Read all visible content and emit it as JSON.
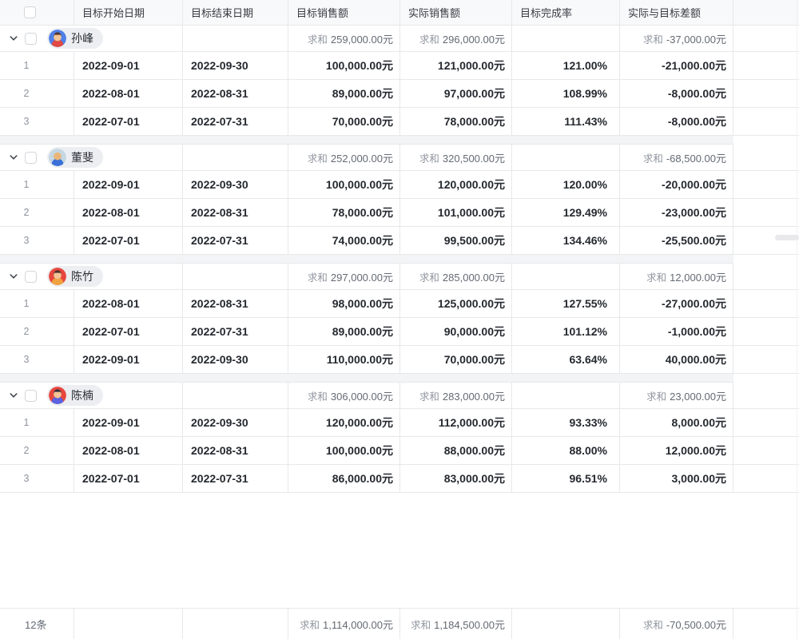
{
  "table": {
    "sum_label": "求和",
    "columns": [
      {
        "key": "start",
        "label": "目标开始日期"
      },
      {
        "key": "end",
        "label": "目标结束日期"
      },
      {
        "key": "target",
        "label": "目标销售额"
      },
      {
        "key": "actual",
        "label": "实际销售额"
      },
      {
        "key": "rate",
        "label": "目标完成率"
      },
      {
        "key": "diff",
        "label": "实际与目标差额"
      }
    ],
    "groups": [
      {
        "name": "孙峰",
        "avatar": {
          "bg": "#4e7fe8",
          "shirt": "#e04a42",
          "skin": "#f4c496",
          "hair": "#57332a"
        },
        "sums": {
          "target": "259,000.00元",
          "actual": "296,000.00元",
          "diff": "-37,000.00元"
        },
        "rows": [
          {
            "num": "1",
            "start": "2022-09-01",
            "end": "2022-09-30",
            "target": "100,000.00元",
            "actual": "121,000.00元",
            "rate": "121.00%",
            "diff": "-21,000.00元"
          },
          {
            "num": "2",
            "start": "2022-08-01",
            "end": "2022-08-31",
            "target": "89,000.00元",
            "actual": "97,000.00元",
            "rate": "108.99%",
            "diff": "-8,000.00元"
          },
          {
            "num": "3",
            "start": "2022-07-01",
            "end": "2022-07-31",
            "target": "70,000.00元",
            "actual": "78,000.00元",
            "rate": "111.43%",
            "diff": "-8,000.00元"
          }
        ]
      },
      {
        "name": "董斐",
        "avatar": {
          "bg": "#c5d7e2",
          "shirt": "#3a6fd8",
          "skin": "#e9b678",
          "hair": null
        },
        "sums": {
          "target": "252,000.00元",
          "actual": "320,500.00元",
          "diff": "-68,500.00元"
        },
        "rows": [
          {
            "num": "1",
            "start": "2022-09-01",
            "end": "2022-09-30",
            "target": "100,000.00元",
            "actual": "120,000.00元",
            "rate": "120.00%",
            "diff": "-20,000.00元"
          },
          {
            "num": "2",
            "start": "2022-08-01",
            "end": "2022-08-31",
            "target": "78,000.00元",
            "actual": "101,000.00元",
            "rate": "129.49%",
            "diff": "-23,000.00元"
          },
          {
            "num": "3",
            "start": "2022-07-01",
            "end": "2022-07-31",
            "target": "74,000.00元",
            "actual": "99,500.00元",
            "rate": "134.46%",
            "diff": "-25,500.00元"
          }
        ]
      },
      {
        "name": "陈竹",
        "avatar": {
          "bg": "#e8473e",
          "shirt": "#f0a23f",
          "skin": "#f4c496",
          "hair": "#4b332a"
        },
        "sums": {
          "target": "297,000.00元",
          "actual": "285,000.00元",
          "diff": "12,000.00元"
        },
        "rows": [
          {
            "num": "1",
            "start": "2022-08-01",
            "end": "2022-08-31",
            "target": "98,000.00元",
            "actual": "125,000.00元",
            "rate": "127.55%",
            "diff": "-27,000.00元"
          },
          {
            "num": "2",
            "start": "2022-07-01",
            "end": "2022-07-31",
            "target": "89,000.00元",
            "actual": "90,000.00元",
            "rate": "101.12%",
            "diff": "-1,000.00元"
          },
          {
            "num": "3",
            "start": "2022-09-01",
            "end": "2022-09-30",
            "target": "110,000.00元",
            "actual": "70,000.00元",
            "rate": "63.64%",
            "diff": "40,000.00元"
          }
        ]
      },
      {
        "name": "陈楠",
        "avatar": {
          "bg": "#e8473e",
          "shirt": "#5c62e0",
          "skin": "#f4c496",
          "hair": "#33303c"
        },
        "sums": {
          "target": "306,000.00元",
          "actual": "283,000.00元",
          "diff": "23,000.00元"
        },
        "rows": [
          {
            "num": "1",
            "start": "2022-09-01",
            "end": "2022-09-30",
            "target": "120,000.00元",
            "actual": "112,000.00元",
            "rate": "93.33%",
            "diff": "8,000.00元"
          },
          {
            "num": "2",
            "start": "2022-08-01",
            "end": "2022-08-31",
            "target": "100,000.00元",
            "actual": "88,000.00元",
            "rate": "88.00%",
            "diff": "12,000.00元"
          },
          {
            "num": "3",
            "start": "2022-07-01",
            "end": "2022-07-31",
            "target": "86,000.00元",
            "actual": "83,000.00元",
            "rate": "96.51%",
            "diff": "3,000.00元"
          }
        ]
      }
    ],
    "footer": {
      "count": "12条",
      "target": "1,114,000.00元",
      "actual": "1,184,500.00元",
      "diff": "-70,500.00元"
    }
  }
}
